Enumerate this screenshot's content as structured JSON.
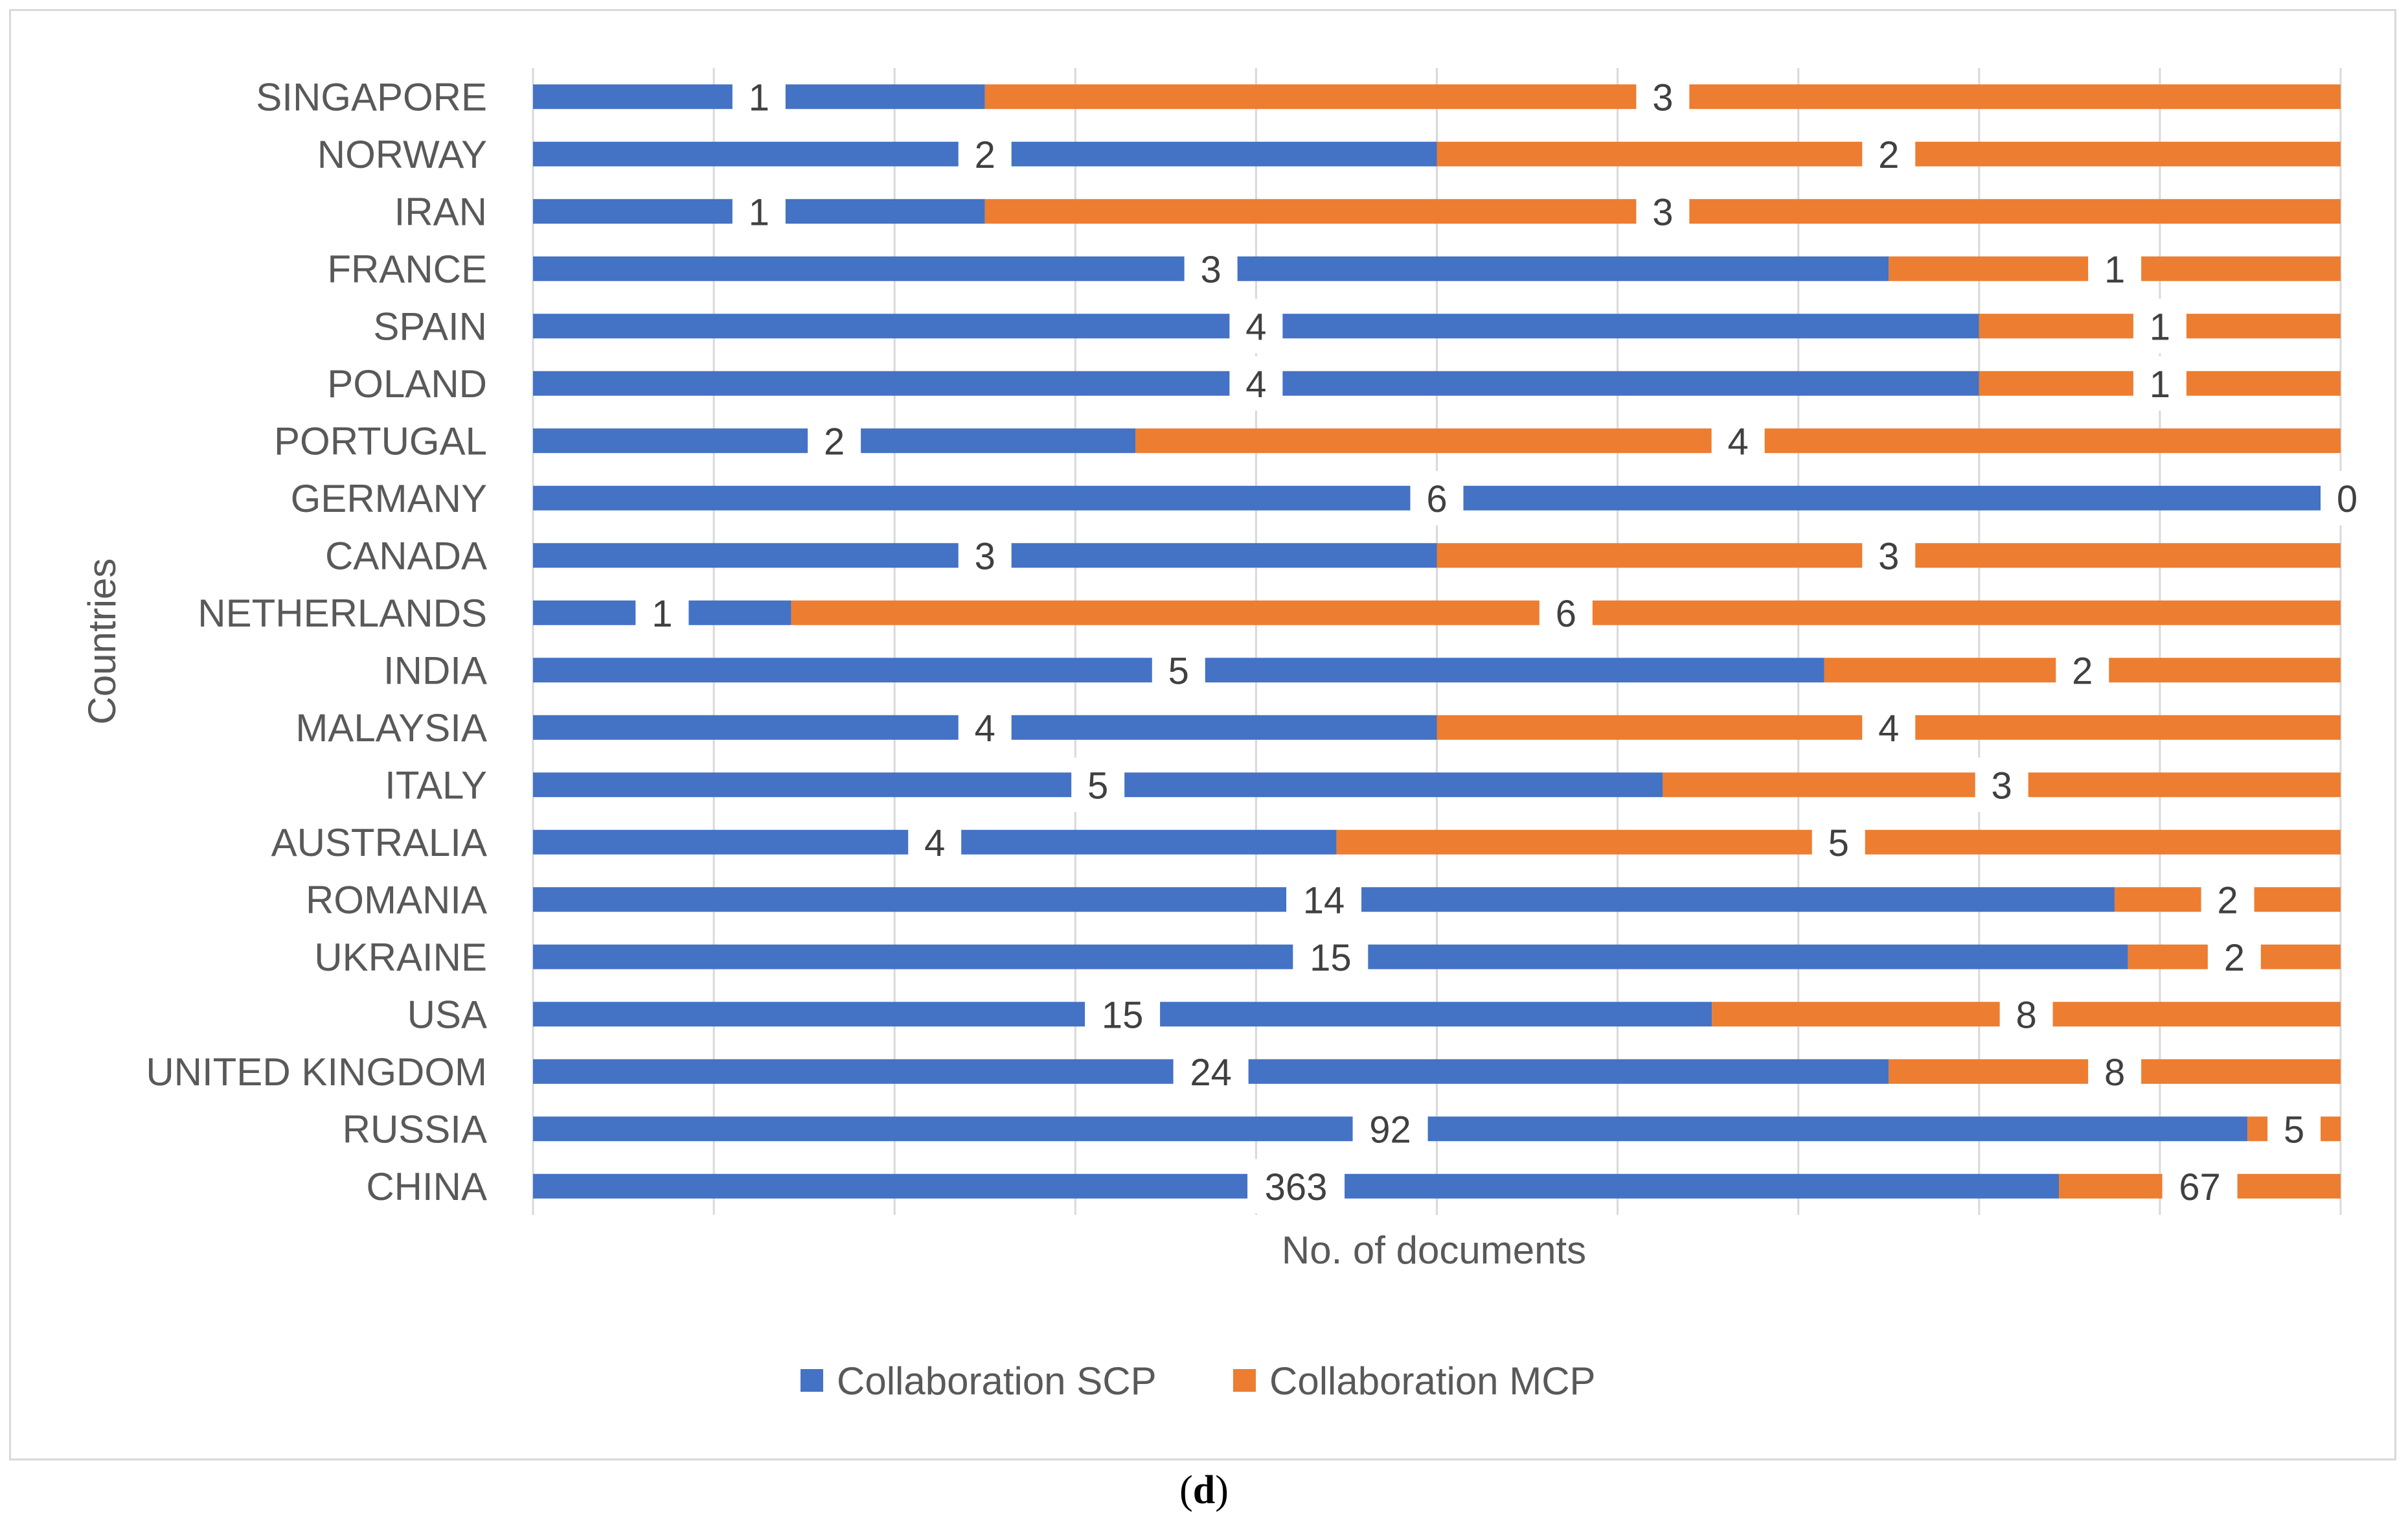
{
  "chart_data": {
    "type": "bar",
    "orientation": "horizontal",
    "stacked": "100%",
    "categories": [
      "SINGAPORE",
      "NORWAY",
      "IRAN",
      "FRANCE",
      "SPAIN",
      "POLAND",
      "PORTUGAL",
      "GERMANY",
      "CANADA",
      "NETHERLANDS",
      "INDIA",
      "MALAYSIA",
      "ITALY",
      "AUSTRALIA",
      "ROMANIA",
      "UKRAINE",
      "USA",
      "UNITED KINGDOM",
      "RUSSIA",
      "CHINA"
    ],
    "series": [
      {
        "name": "Collaboration SCP",
        "color": "#4472C4",
        "values": [
          1,
          2,
          1,
          3,
          4,
          4,
          2,
          6,
          3,
          1,
          5,
          4,
          5,
          4,
          14,
          15,
          15,
          24,
          92,
          363
        ]
      },
      {
        "name": "Collaboration MCP",
        "color": "#ED7D31",
        "values": [
          3,
          2,
          3,
          1,
          1,
          1,
          4,
          0,
          3,
          6,
          2,
          4,
          3,
          5,
          2,
          2,
          8,
          8,
          5,
          67
        ]
      }
    ],
    "xlabel": "No. of documents",
    "ylabel": "Countries",
    "gridlines": "vertical",
    "legend": "bottom",
    "xlim": [
      0,
      1
    ]
  },
  "caption": {
    "open": "(",
    "letter": "d",
    "close": ")"
  }
}
